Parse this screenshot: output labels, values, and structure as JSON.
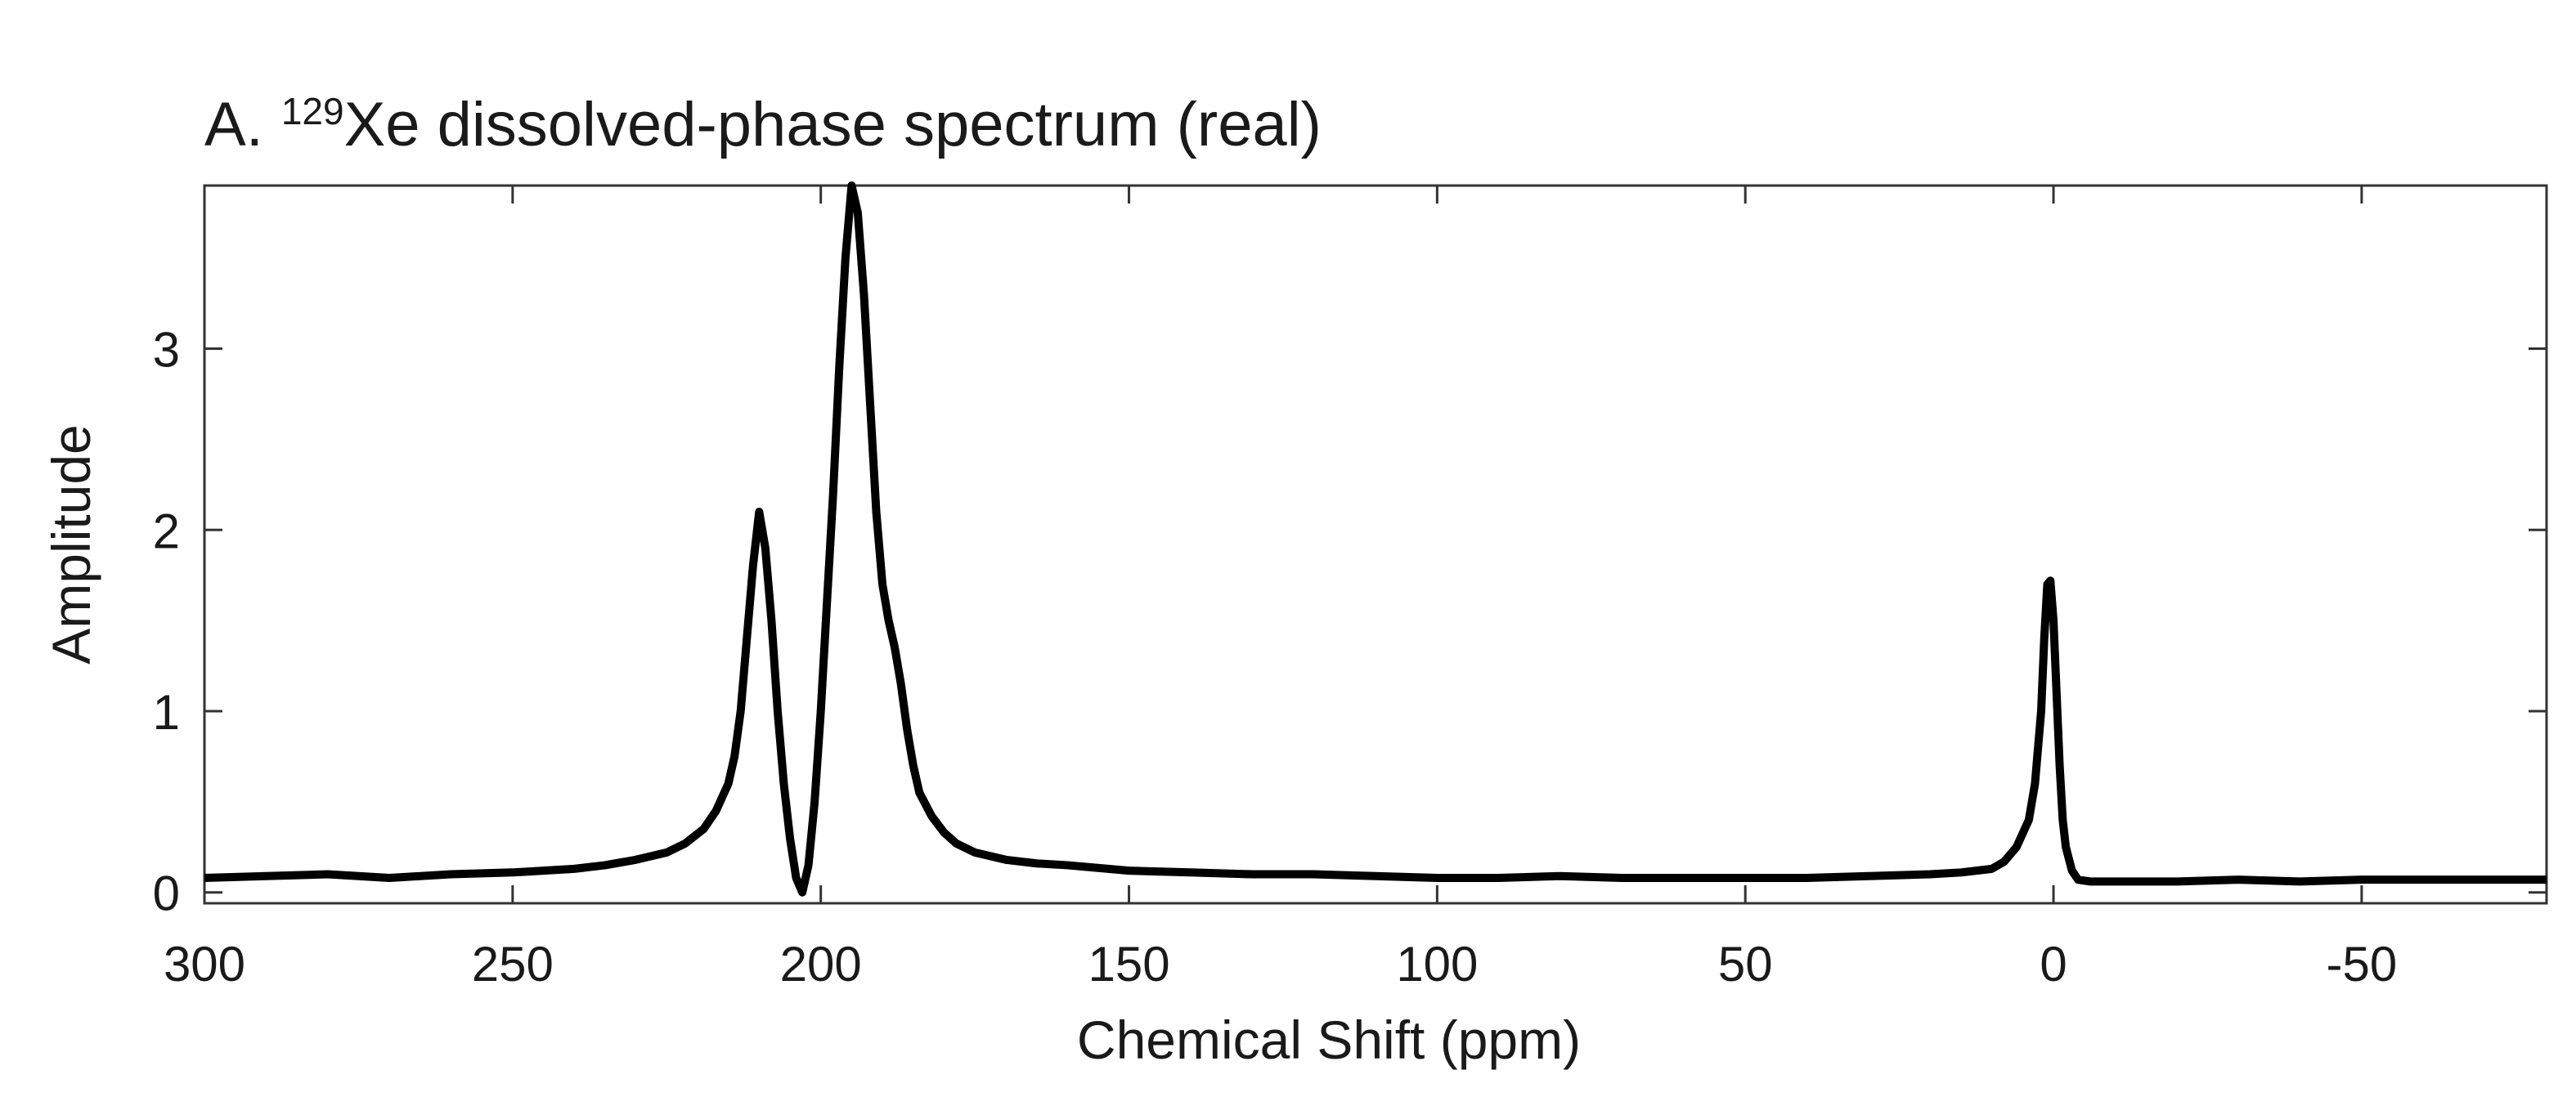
{
  "chart_data": {
    "type": "line",
    "title": {
      "label": "A.",
      "isotope_mass": "129",
      "rest": "Xe dissolved-phase spectrum (real)"
    },
    "x_label": "Chemical Shift (ppm)",
    "y_label": "Amplitude",
    "x": [
      300,
      290,
      280,
      270,
      260,
      250,
      240,
      235,
      230,
      225,
      222,
      219,
      217,
      215,
      214,
      213,
      212,
      211,
      210,
      209,
      208,
      207,
      206,
      205,
      204,
      203,
      202,
      201,
      200,
      199,
      198,
      197,
      196,
      195,
      194,
      193,
      192,
      191,
      190,
      189,
      188,
      187,
      186,
      185,
      184,
      182,
      180,
      178,
      175,
      170,
      165,
      160,
      150,
      140,
      130,
      120,
      110,
      100,
      90,
      80,
      70,
      60,
      50,
      40,
      30,
      20,
      15,
      10,
      8,
      6,
      4,
      3,
      2,
      1.5,
      1,
      0.5,
      0,
      -0.5,
      -1,
      -1.5,
      -2,
      -3,
      -4,
      -6,
      -10,
      -20,
      -30,
      -40,
      -50,
      -60,
      -70,
      -80
    ],
    "series": [
      {
        "name": "real",
        "color": "#000000",
        "values": [
          0.08,
          0.09,
          0.1,
          0.08,
          0.1,
          0.11,
          0.13,
          0.15,
          0.18,
          0.22,
          0.27,
          0.35,
          0.45,
          0.6,
          0.75,
          1.0,
          1.4,
          1.8,
          2.1,
          1.9,
          1.5,
          1.0,
          0.6,
          0.3,
          0.08,
          0.0,
          0.15,
          0.5,
          1.0,
          1.6,
          2.2,
          2.9,
          3.5,
          3.9,
          3.75,
          3.3,
          2.7,
          2.1,
          1.7,
          1.5,
          1.35,
          1.15,
          0.9,
          0.7,
          0.55,
          0.42,
          0.33,
          0.27,
          0.22,
          0.18,
          0.16,
          0.15,
          0.12,
          0.11,
          0.1,
          0.1,
          0.09,
          0.08,
          0.08,
          0.09,
          0.08,
          0.08,
          0.08,
          0.08,
          0.09,
          0.1,
          0.11,
          0.13,
          0.17,
          0.25,
          0.4,
          0.6,
          1.0,
          1.4,
          1.7,
          1.72,
          1.5,
          1.1,
          0.7,
          0.4,
          0.25,
          0.12,
          0.07,
          0.06,
          0.06,
          0.06,
          0.07,
          0.06,
          0.07,
          0.07,
          0.07,
          0.07
        ]
      }
    ],
    "xlim": [
      300,
      -80
    ],
    "xticks": [
      300,
      250,
      200,
      150,
      100,
      50,
      0,
      -50
    ],
    "ylim": [
      -0.06,
      3.9
    ],
    "yticks": [
      0,
      1,
      2,
      3
    ],
    "grid": false
  }
}
